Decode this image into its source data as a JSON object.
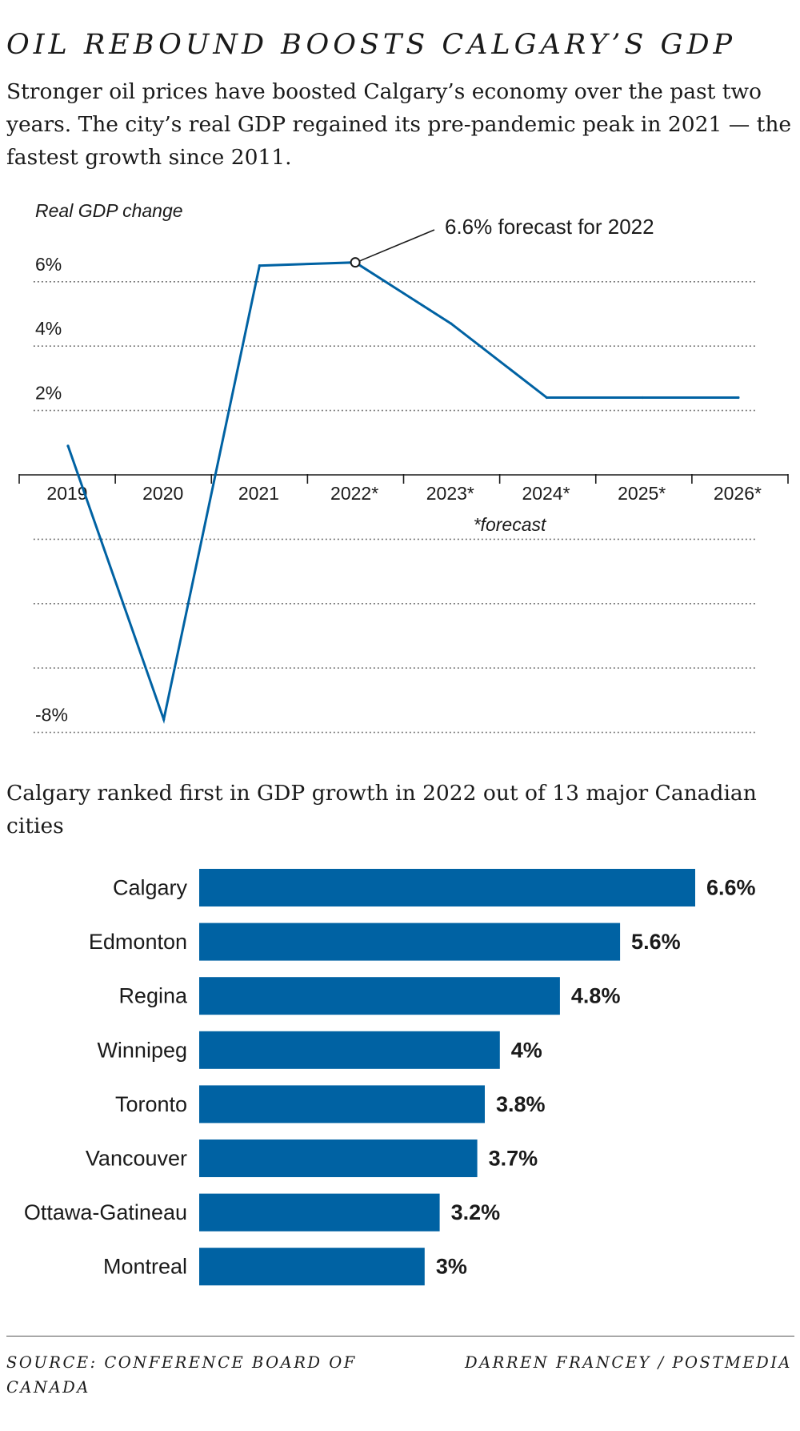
{
  "title": "OIL REBOUND BOOSTS CALGARY’S GDP",
  "subtitle": "Stronger oil prices have boosted Calgary’s economy over the past two years. The city’s real GDP regained its pre-pandemic peak in 2021 — the fastest growth since 2011.",
  "bar_heading": "Calgary ranked first in GDP growth in 2022 out of 13 major Canadian cities",
  "footer": {
    "source": "SOURCE: CONFERENCE BOARD OF CANADA",
    "credit": "DARREN FRANCEY / POSTMEDIA"
  },
  "colors": {
    "accent": "#0062a3",
    "gridline": "#555555",
    "text": "#1a1a1a"
  },
  "chart_data": [
    {
      "type": "line",
      "ylabel": "Real GDP change",
      "categories": [
        "2019",
        "2020",
        "2021",
        "2022*",
        "2023*",
        "2024*",
        "2025*",
        "2026*"
      ],
      "values": [
        0.9,
        -7.6,
        6.5,
        6.6,
        4.7,
        2.4,
        2.4,
        2.4
      ],
      "ylim": [
        -8,
        6
      ],
      "yticks": [
        {
          "value": 6,
          "label": "6%"
        },
        {
          "value": 4,
          "label": "4%"
        },
        {
          "value": 2,
          "label": "2%"
        },
        {
          "value": -2,
          "label": ""
        },
        {
          "value": -4,
          "label": ""
        },
        {
          "value": -6,
          "label": ""
        },
        {
          "value": -8,
          "label": "-8%"
        }
      ],
      "grid": true,
      "annotation": {
        "category": "2022*",
        "text": "6.6% forecast for 2022"
      },
      "note": "*forecast"
    },
    {
      "type": "bar",
      "orientation": "horizontal",
      "categories": [
        "Calgary",
        "Edmonton",
        "Regina",
        "Winnipeg",
        "Toronto",
        "Vancouver",
        "Ottawa-Gatineau",
        "Montreal"
      ],
      "values": [
        6.6,
        5.6,
        4.8,
        4,
        3.8,
        3.7,
        3.2,
        3
      ],
      "labels": [
        "6.6%",
        "5.6%",
        "4.8%",
        "4%",
        "3.8%",
        "3.7%",
        "3.2%",
        "3%"
      ]
    }
  ]
}
